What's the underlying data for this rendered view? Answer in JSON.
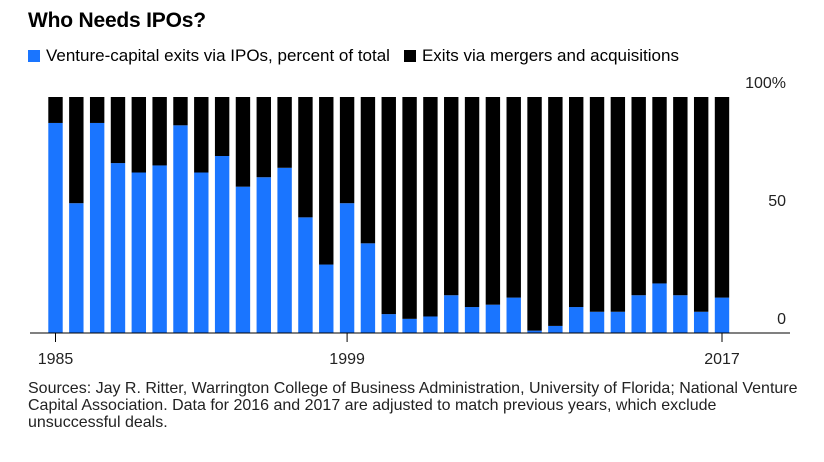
{
  "chart_data": {
    "type": "bar",
    "stacked": true,
    "title": "Who Needs IPOs?",
    "x": [
      1985,
      1986,
      1987,
      1988,
      1989,
      1990,
      1991,
      1992,
      1993,
      1994,
      1995,
      1996,
      1997,
      1998,
      1999,
      2000,
      2001,
      2002,
      2003,
      2004,
      2005,
      2006,
      2007,
      2008,
      2009,
      2010,
      2011,
      2012,
      2013,
      2014,
      2015,
      2016,
      2017
    ],
    "x_tick_labels": [
      "1985",
      "1999",
      "2017"
    ],
    "series": [
      {
        "name": "Venture-capital exits via IPOs, percent of total",
        "color": "#1a75ff",
        "values": [
          89,
          55,
          89,
          72,
          68,
          71,
          88,
          68,
          75,
          62,
          66,
          70,
          49,
          29,
          55,
          38,
          8,
          6,
          7,
          16,
          11,
          12,
          15,
          1,
          3,
          11,
          9,
          9,
          16,
          21,
          16,
          9,
          15
        ]
      },
      {
        "name": "Exits via mergers and acquisitions",
        "color": "#000000",
        "values": [
          11,
          45,
          11,
          28,
          32,
          29,
          12,
          32,
          25,
          38,
          34,
          30,
          51,
          71,
          45,
          62,
          92,
          94,
          93,
          84,
          89,
          88,
          85,
          99,
          97,
          89,
          91,
          91,
          84,
          79,
          84,
          91,
          85
        ]
      }
    ],
    "y_tick_labels": [
      "0",
      "50",
      "100%"
    ],
    "ylim": [
      0,
      100
    ]
  },
  "source_text": "Sources: Jay R. Ritter, Warrington College of Business Administration, University of Florida; National Venture Capital Association. Data for 2016 and 2017 are adjusted to match previous years, which exclude unsuccessful deals."
}
